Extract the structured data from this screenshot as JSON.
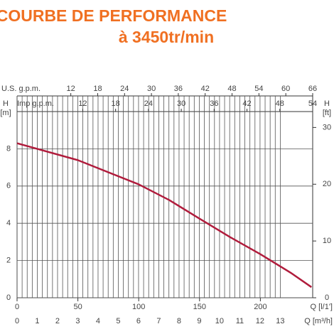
{
  "chart_data": {
    "type": "line",
    "title": "COURBE DE PERFORMANCE",
    "subtitle": "à 3450tr/min",
    "x": [
      0,
      50,
      100,
      125,
      150,
      175,
      200,
      225,
      242
    ],
    "series": [
      {
        "color": "#b01c3c",
        "values": [
          8.3,
          7.39,
          6.09,
          5.25,
          4.25,
          3.26,
          2.34,
          1.34,
          0.57
        ]
      }
    ],
    "xlabel": "Q [l/1']",
    "xlim": [
      0,
      243
    ],
    "xticks": [
      0,
      50,
      100,
      150,
      200
    ],
    "x2label": "Q [m³/h]",
    "x2lim": [
      0,
      14.6
    ],
    "x2ticks": [
      0,
      1,
      2,
      3,
      4,
      5,
      6,
      7,
      8,
      9,
      10,
      11,
      12,
      13
    ],
    "x3label": "U.S. g.p.m.",
    "x3lim": [
      0,
      66
    ],
    "x3ticks": [
      12,
      18,
      24,
      30,
      36,
      42,
      48,
      54,
      60,
      66
    ],
    "x4label": "Imp g.p.m.",
    "x4lim": [
      0,
      54
    ],
    "x4ticks": [
      12,
      18,
      24,
      30,
      36,
      42,
      48,
      54
    ],
    "ylabel": "H",
    "ylabel_unit": "[m]",
    "ylim": [
      0,
      10
    ],
    "yticks": [
      0,
      2,
      4,
      6,
      8
    ],
    "y2label": "H",
    "y2label_unit": "[ft]",
    "y2lim": [
      0,
      32.8
    ],
    "y2ticks": [
      0,
      10,
      20,
      30
    ],
    "grid": true
  }
}
